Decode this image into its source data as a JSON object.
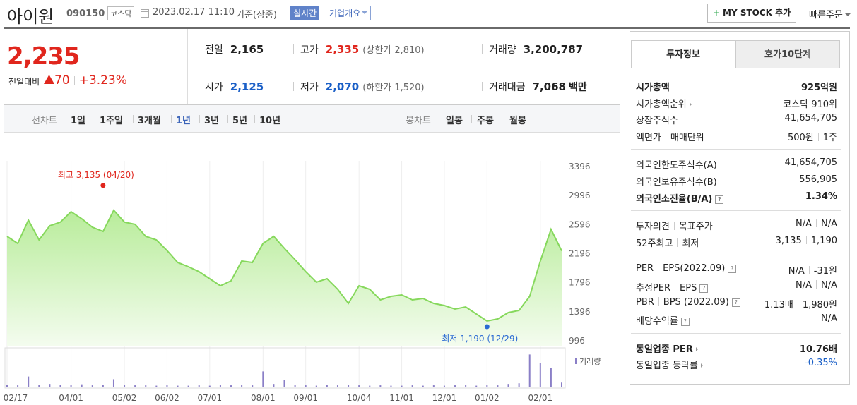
{
  "header": {
    "name": "아이원",
    "code": "090150",
    "market": "코스닥",
    "datetime": "2023.02.17 11:10",
    "basis": "기준(장중)",
    "realtime": "실시간",
    "overview": "기업개요",
    "my_stock": "MY STOCK 추가",
    "quick_order": "빠른주문"
  },
  "quote": {
    "price": "2,235",
    "change_label": "전일대비",
    "change": "70",
    "change_pct": "+3.23%",
    "items": [
      {
        "label": "전일",
        "value": "2,165"
      },
      {
        "label": "고가",
        "value": "2,335",
        "note_label": "상한가",
        "note_value": "2,810"
      },
      {
        "label": "거래량",
        "value": "3,200,787"
      },
      {
        "label": "시가",
        "value": "2,125"
      },
      {
        "label": "저가",
        "value": "2,070",
        "note_label": "하한가",
        "note_value": "1,520"
      },
      {
        "label": "거래대금",
        "value": "7,068",
        "unit": "백만"
      }
    ]
  },
  "tabs": {
    "line_label": "선차트",
    "line": [
      "1일",
      "1주일",
      "3개월",
      "1년",
      "3년",
      "5년",
      "10년"
    ],
    "candle_label": "봉차트",
    "candle": [
      "일봉",
      "주봉",
      "월봉"
    ]
  },
  "chart_data": {
    "type": "line",
    "color": "#86d85c",
    "categories": [
      "02/17",
      null,
      null,
      null,
      null,
      null,
      "04/01",
      null,
      null,
      null,
      null,
      "05/02",
      null,
      null,
      null,
      "06/02",
      null,
      null,
      null,
      "07/01",
      null,
      null,
      null,
      null,
      "08/01",
      null,
      null,
      null,
      "09/01",
      null,
      null,
      null,
      null,
      "10/04",
      null,
      null,
      null,
      "11/01",
      null,
      null,
      null,
      "12/01",
      null,
      null,
      null,
      "01/02",
      null,
      null,
      null,
      null,
      "02/01",
      null,
      null
    ],
    "values": [
      2434,
      2337,
      2658,
      2385,
      2580,
      2630,
      2774,
      2677,
      2560,
      2502,
      2794,
      2630,
      2600,
      2434,
      2385,
      2240,
      2075,
      2016,
      1948,
      1851,
      1754,
      1822,
      2094,
      2075,
      2337,
      2434,
      2269,
      2113,
      1948,
      1803,
      1851,
      1705,
      1511,
      1754,
      1705,
      1560,
      1608,
      1628,
      1560,
      1579,
      1511,
      1482,
      1433,
      1462,
      1365,
      1268,
      1297,
      1385,
      1414,
      1608,
      2094,
      2531,
      2235
    ],
    "ylim": [
      996,
      3396
    ],
    "yticks": [
      3396,
      2996,
      2596,
      2196,
      1796,
      1396,
      996
    ],
    "grid": true,
    "annotations": [
      {
        "label": "최고 3,135 (04/20)",
        "value": 3135,
        "color": "#e0261d"
      },
      {
        "label": "최저 1,190 (12/29)",
        "value": 1190,
        "color": "#2a6ad3"
      }
    ],
    "volume": {
      "name": "거래량",
      "color": "#8a7fc7",
      "y2lim": [
        0,
        100
      ],
      "values": [
        6,
        4,
        30,
        5,
        8,
        6,
        5,
        7,
        4,
        6,
        22,
        5,
        4,
        4,
        3,
        5,
        3,
        3,
        4,
        3,
        5,
        4,
        6,
        4,
        45,
        8,
        20,
        5,
        4,
        3,
        6,
        4,
        5,
        4,
        3,
        4,
        3,
        3,
        4,
        3,
        4,
        3,
        4,
        5,
        3,
        6,
        4,
        8,
        10,
        95,
        70,
        55,
        12
      ]
    }
  },
  "side": {
    "tabs": [
      "투자정보",
      "호가10단계"
    ],
    "groups": [
      [
        {
          "label": [
            "시가총액"
          ],
          "value": [
            "925억원"
          ]
        },
        {
          "label": [
            "시가총액순위"
          ],
          "value": [
            "코스닥 910위"
          ]
        },
        {
          "label": [
            "상장주식수"
          ],
          "value": [
            "41,654,705"
          ]
        },
        {
          "label": [
            "액면가",
            "매매단위"
          ],
          "value": [
            "500원",
            "1주"
          ]
        }
      ],
      [
        {
          "label": [
            "외국인한도주식수(A)"
          ],
          "value": [
            "41,654,705"
          ]
        },
        {
          "label": [
            "외국인보유주식수(B)"
          ],
          "value": [
            "556,905"
          ]
        },
        {
          "label": [
            "외국인소진율(B/A)"
          ],
          "value": [
            "1.34%"
          ]
        }
      ],
      [
        {
          "label": [
            "투자의견",
            "목표주가"
          ],
          "value": [
            "N/A",
            "N/A"
          ]
        },
        {
          "label": [
            "52주최고",
            "최저"
          ],
          "value": [
            "3,135",
            "1,190"
          ]
        }
      ],
      [
        {
          "label": [
            "PER",
            "EPS(2022.09)"
          ],
          "value": [
            "N/A",
            "-31원"
          ]
        },
        {
          "label": [
            "추정PER",
            "EPS"
          ],
          "value": [
            "N/A",
            "N/A"
          ]
        },
        {
          "label": [
            "PBR",
            "BPS (2022.09)"
          ],
          "value": [
            "1.13배",
            "1,980원"
          ]
        },
        {
          "label": [
            "배당수익률"
          ],
          "value": [
            "N/A"
          ]
        }
      ],
      [
        {
          "label": [
            "동일업종 PER"
          ],
          "value": [
            "10.76배"
          ]
        },
        {
          "label": [
            "동일업종 등락률"
          ],
          "value": [
            "-0.35%"
          ]
        }
      ]
    ]
  }
}
